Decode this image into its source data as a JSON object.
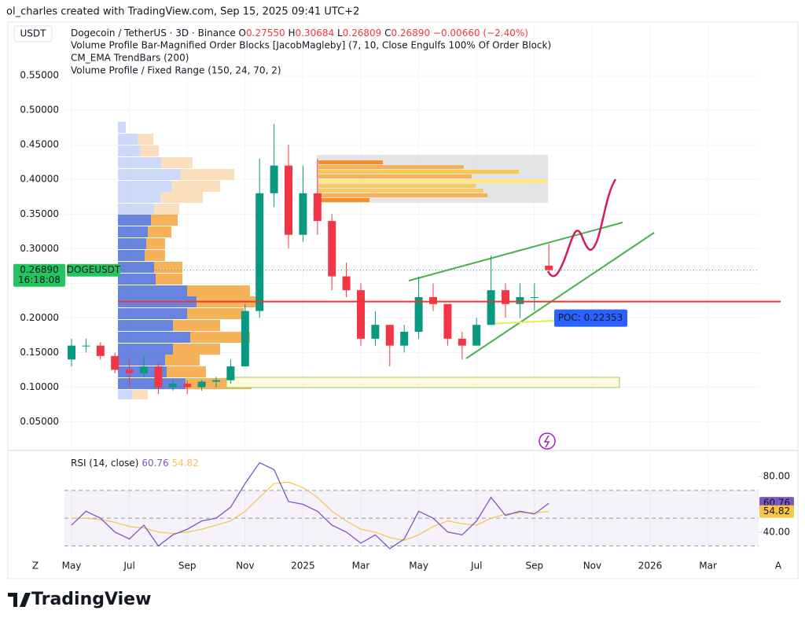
{
  "header": {
    "credit": "ol_charles created with TradingView.com, Sep 15, 2025 09:41 UTC+2",
    "currency": "USDT",
    "axis_left": "Z",
    "axis_right": "A"
  },
  "footer": {
    "logo": "TradingView"
  },
  "chart_data": [
    {
      "type": "candlestick",
      "title": "Dogecoin / TetherUS · 3D · Binance",
      "quote": [
        {
          "key": "O",
          "value": "0.27550"
        },
        {
          "key": "H",
          "value": "0.30684"
        },
        {
          "key": "L",
          "value": "0.26809"
        },
        {
          "key": "C",
          "value": "0.26890"
        }
      ],
      "change": "−0.00660 (−2.40%)",
      "indicators": [
        "Volume Profile Bar-Magnified Order Blocks [JacobMagleby] (7, 10, Close Engulfs 100% Of Order Block)",
        "CM_EMA TrendBars (200)",
        "Volume Profile / Fixed Range (150, 24, 70, 2)"
      ],
      "categories": [
        "May",
        null,
        null,
        null,
        "Jul",
        null,
        null,
        null,
        "Sep",
        null,
        null,
        null,
        "Nov",
        null,
        null,
        null,
        "2025",
        null,
        null,
        null,
        "Mar",
        null,
        null,
        null,
        "May",
        null,
        null,
        null,
        "Jul",
        null,
        null,
        null,
        "Sep",
        null,
        null,
        null,
        "Nov",
        null,
        null,
        null,
        "2026",
        null,
        null,
        null,
        "Mar",
        null,
        null,
        null
      ],
      "open": [
        0.14,
        0.16,
        0.16,
        0.145,
        0.125,
        0.12,
        0.13,
        0.1,
        0.105,
        0.1,
        0.108,
        0.11,
        0.13,
        0.21,
        0.38,
        0.42,
        0.32,
        0.38,
        0.34,
        0.26,
        0.24,
        0.17,
        0.19,
        0.16,
        0.18,
        0.23,
        0.22,
        0.17,
        0.16,
        0.19,
        0.24,
        0.22,
        0.23,
        0.2755,
        null,
        null,
        null,
        null,
        null,
        null,
        null,
        null,
        null,
        null,
        null,
        null,
        null,
        null
      ],
      "high": [
        0.17,
        0.17,
        0.165,
        0.15,
        0.14,
        0.145,
        0.135,
        0.11,
        0.11,
        0.11,
        0.115,
        0.14,
        0.22,
        0.43,
        0.48,
        0.45,
        0.42,
        0.43,
        0.35,
        0.28,
        0.25,
        0.21,
        0.19,
        0.19,
        0.26,
        0.25,
        0.22,
        0.18,
        0.2,
        0.29,
        0.25,
        0.25,
        0.25,
        0.30684,
        null,
        null,
        null,
        null,
        null,
        null,
        null,
        null,
        null,
        null,
        null,
        null,
        null,
        null
      ],
      "low": [
        0.13,
        0.15,
        0.14,
        0.12,
        0.1,
        0.115,
        0.09,
        0.095,
        0.09,
        0.095,
        0.1,
        0.105,
        0.13,
        0.2,
        0.36,
        0.3,
        0.31,
        0.32,
        0.24,
        0.23,
        0.16,
        0.16,
        0.13,
        0.15,
        0.17,
        0.21,
        0.16,
        0.14,
        0.16,
        0.19,
        0.2,
        0.2,
        0.21,
        0.26809,
        null,
        null,
        null,
        null,
        null,
        null,
        null,
        null,
        null,
        null,
        null,
        null,
        null,
        null
      ],
      "close": [
        0.16,
        0.16,
        0.145,
        0.125,
        0.12,
        0.13,
        0.1,
        0.105,
        0.1,
        0.108,
        0.11,
        0.13,
        0.21,
        0.38,
        0.42,
        0.32,
        0.38,
        0.34,
        0.26,
        0.24,
        0.17,
        0.19,
        0.16,
        0.18,
        0.23,
        0.22,
        0.17,
        0.16,
        0.19,
        0.24,
        0.22,
        0.23,
        0.23,
        0.2689,
        null,
        null,
        null,
        null,
        null,
        null,
        null,
        null,
        null,
        null,
        null,
        null,
        null,
        null
      ],
      "up_color": "#089981",
      "down_color": "#f23645",
      "last_price_label": "0.26890",
      "countdown": "16:18:08",
      "ticker": "DOGEUSDT",
      "poc": {
        "value": 0.22353,
        "label": "POC: 0.22353",
        "color": "#e53935"
      },
      "ylim": [
        0.012,
        0.625
      ],
      "yticks": [
        {
          "value": 0.05,
          "label": "0.05000"
        },
        {
          "value": 0.1,
          "label": "0.10000"
        },
        {
          "value": 0.15,
          "label": "0.15000"
        },
        {
          "value": 0.2,
          "label": "0.20000"
        },
        {
          "value": 0.25,
          "label": "0.25000"
        },
        {
          "value": 0.3,
          "label": "0.30000"
        },
        {
          "value": 0.35,
          "label": "0.35000"
        },
        {
          "value": 0.4,
          "label": "0.40000"
        },
        {
          "value": 0.45,
          "label": "0.45000"
        },
        {
          "value": 0.5,
          "label": "0.50000"
        },
        {
          "value": 0.55,
          "label": "0.55000"
        }
      ],
      "grid": true
    },
    {
      "type": "line",
      "title": "RSI (14, close)",
      "series": [
        {
          "color": "#7e57c2",
          "value_label": "60.76",
          "values": [
            45,
            55,
            50,
            40,
            35,
            45,
            30,
            38,
            42,
            48,
            50,
            58,
            75,
            90,
            85,
            62,
            60,
            55,
            45,
            40,
            32,
            38,
            28,
            35,
            55,
            50,
            40,
            38,
            48,
            65,
            52,
            55,
            53,
            60.76
          ]
        },
        {
          "color": "#f7c548",
          "value_label": "54.82",
          "values": [
            50,
            50,
            49,
            47,
            44,
            43,
            40,
            39,
            40,
            42,
            45,
            48,
            55,
            65,
            75,
            76,
            72,
            65,
            55,
            48,
            42,
            40,
            36,
            34,
            38,
            44,
            48,
            46,
            45,
            50,
            53,
            54,
            54,
            54.82
          ]
        }
      ],
      "bands": [
        30,
        50,
        70
      ],
      "ylim": [
        24,
        96
      ],
      "yticks": [
        {
          "value": 40,
          "label": "40.00"
        },
        {
          "value": 80,
          "label": "80.00"
        }
      ],
      "grid": true
    }
  ]
}
